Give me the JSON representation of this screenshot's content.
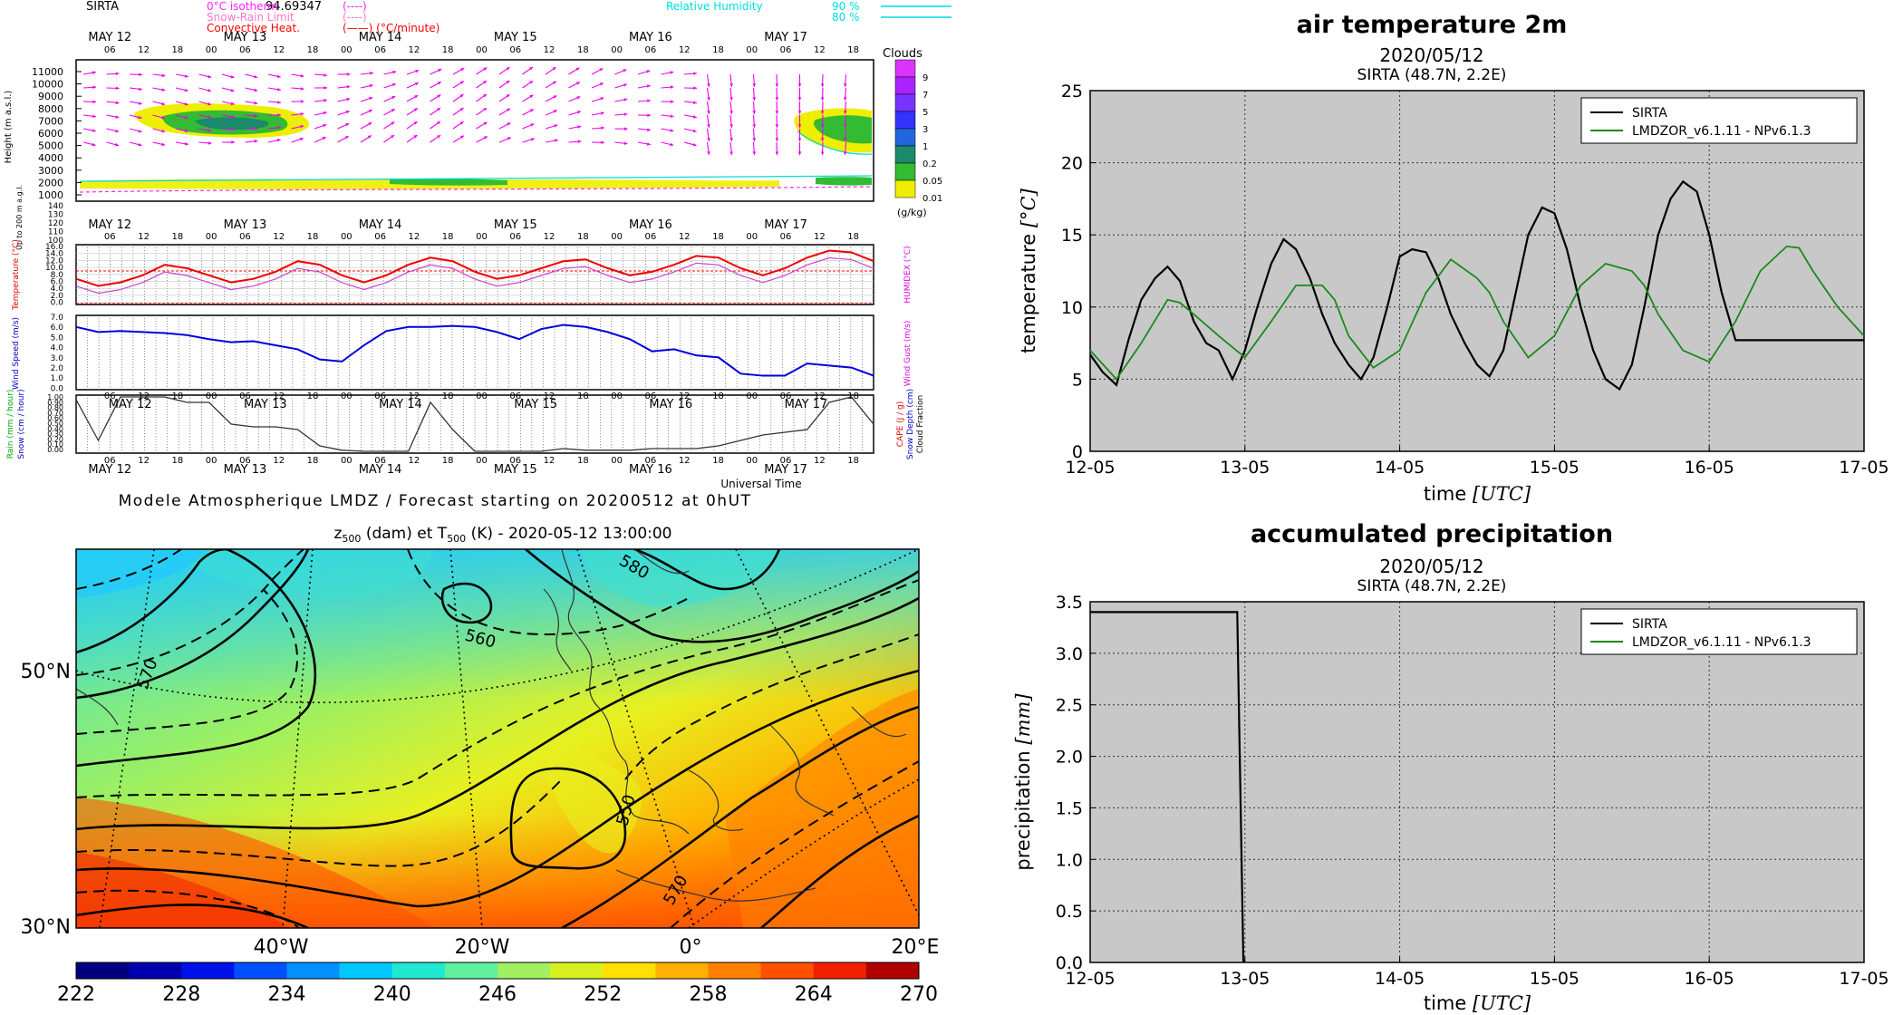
{
  "meteogram": {
    "station": "SIRTA",
    "station_value": "94.69347",
    "legend_left": [
      {
        "label": "0°C isotherm",
        "sample": "(----)",
        "color": "#ff22ff"
      },
      {
        "label": "Snow-Rain Limit",
        "sample": "(----)",
        "color": "#ff77cc"
      },
      {
        "label": "Convective Heat.",
        "sample": "(——) (°C/minute)",
        "color": "#ff0000"
      }
    ],
    "legend_right": [
      {
        "label": "Relative Humidity",
        "sample": "90 %",
        "color": "#00dddd"
      },
      {
        "label": "",
        "sample": "80 %",
        "color": "#00dddd"
      }
    ],
    "days": [
      "MAY 12",
      "MAY 13",
      "MAY 14",
      "MAY 15",
      "MAY 16",
      "MAY 17"
    ],
    "hours": [
      "06",
      "12",
      "18",
      "00"
    ],
    "height_label": "Height (m a.s.l.)",
    "height_ticks": [
      "11000",
      "10000",
      "9000",
      "8000",
      "7000",
      "6000",
      "5000",
      "4000",
      "3000",
      "2000",
      "1000"
    ],
    "low_label": "Up to 200 m a.g.l.",
    "low_ticks": [
      "140",
      "130",
      "120",
      "110",
      "100"
    ],
    "clouds_title": "Clouds",
    "clouds_unit": "(g/kg)",
    "cloud_levels": [
      "9",
      "7",
      "5",
      "3",
      "1",
      "0.2",
      "0.05",
      "0.01"
    ],
    "cloud_colors": [
      "#dd33ff",
      "#aa22ff",
      "#7733ff",
      "#3333ff",
      "#2266dd",
      "#1a8a6a",
      "#33bb33",
      "#eeee00"
    ],
    "temp_label": "Temperature (°C)",
    "temp_right_label": "HUMIDEX (°C)",
    "temp_ticks": [
      "16.0",
      "14.0",
      "12.0",
      "10.0",
      "8.0",
      "6.0",
      "4.0",
      "2.0",
      "0.0"
    ],
    "wind_label": "Wind Speed (m/s)",
    "wind_right_label": "Wind Gust (m/s)",
    "wind_ticks": [
      "7.0",
      "6.0",
      "5.0",
      "4.0",
      "3.0",
      "2.0",
      "1.0",
      "0.0"
    ],
    "precip_left_labels": [
      "Rain (mm / hour)",
      "Snow (cm / hour)"
    ],
    "precip_right_labels": [
      "CAPE (J / g)",
      "Snow Depth (cm)",
      "Cloud Fraction"
    ],
    "precip_ticks": [
      "1.00",
      "0.90",
      "0.80",
      "0.70",
      "0.60",
      "0.50",
      "0.40",
      "0.30",
      "0.20",
      "0.10",
      "0.00"
    ],
    "x_title": "Universal Time",
    "footer": "Modele Atmospherique LMDZ / Forecast starting on 20200512 at 0hUT"
  },
  "map": {
    "title_parts": {
      "z": "z",
      "sub500": "500",
      "dam": " (dam) et T",
      "sub500b": "500",
      "rest": " (K) - 2020-05-12 13:00:00"
    },
    "lat_labels": [
      "50°N",
      "30°N"
    ],
    "lon_labels": [
      "40°W",
      "20°W",
      "0°",
      "20°E"
    ],
    "contour_labels": [
      "560",
      "570",
      "550",
      "570",
      "580"
    ],
    "colorbar_ticks": [
      "222",
      "228",
      "234",
      "240",
      "246",
      "252",
      "258",
      "264",
      "270"
    ],
    "colorbar_colors": [
      "#00007f",
      "#0000b0",
      "#0010e8",
      "#0050ff",
      "#0090ff",
      "#00c8ff",
      "#20e8d0",
      "#60f0a0",
      "#a0f060",
      "#d8f020",
      "#ffe000",
      "#ffb000",
      "#ff8000",
      "#ff5000",
      "#f02000",
      "#b00000"
    ]
  },
  "chart_data": [
    {
      "type": "line",
      "title": "air temperature 2m",
      "subtitle1": "2020/05/12",
      "subtitle2": "SIRTA (48.7N, 2.2E)",
      "xlabel_pre": "time ",
      "xlabel_unit": "[UTC]",
      "ylabel_pre": "temperature ",
      "ylabel_unit": "[°C]",
      "x_ticks": [
        "12-05",
        "13-05",
        "14-05",
        "15-05",
        "16-05",
        "17-05"
      ],
      "y_ticks": [
        "0",
        "5",
        "10",
        "15",
        "20",
        "25"
      ],
      "xlim": [
        0,
        5
      ],
      "ylim": [
        0,
        25
      ],
      "grid": true,
      "legend_position": "top-right",
      "series": [
        {
          "name": "SIRTA",
          "color": "#000000",
          "x": [
            0,
            0.08,
            0.17,
            0.25,
            0.33,
            0.42,
            0.5,
            0.58,
            0.67,
            0.75,
            0.83,
            0.92,
            1.0,
            1.08,
            1.17,
            1.25,
            1.33,
            1.42,
            1.5,
            1.58,
            1.67,
            1.75,
            1.83,
            1.92,
            2.0,
            2.08,
            2.17,
            2.25,
            2.33,
            2.42,
            2.5,
            2.58,
            2.67,
            2.75,
            2.83,
            2.92,
            3.0,
            3.08,
            3.17,
            3.25,
            3.33,
            3.42,
            3.5,
            3.58,
            3.67,
            3.75,
            3.83,
            3.92,
            4.0,
            4.08,
            4.17,
            4.25,
            4.33,
            4.42,
            4.5,
            4.58,
            4.67,
            4.75,
            4.83,
            4.92,
            5.0
          ],
          "y": [
            6.7,
            5.5,
            4.6,
            7.8,
            10.5,
            12.0,
            12.8,
            11.8,
            9.0,
            7.5,
            7.0,
            5.0,
            7.0,
            10.0,
            13.0,
            14.7,
            14.0,
            12.0,
            9.5,
            7.5,
            6.0,
            5.0,
            6.5,
            10.0,
            13.5,
            14.0,
            13.8,
            12.0,
            9.5,
            7.5,
            6.0,
            5.2,
            7.0,
            11.0,
            15.0,
            16.9,
            16.5,
            14.0,
            10.0,
            7.0,
            5.0,
            4.3,
            6.0,
            10.0,
            15.0,
            17.5,
            18.7,
            18.0,
            15.0,
            11.0,
            7.7,
            7.7,
            7.7,
            7.7,
            7.7,
            7.7,
            7.7,
            7.7,
            7.7,
            7.7,
            7.7
          ]
        },
        {
          "name": "LMDZOR_v6.1.11 - NPv6.1.3",
          "color": "#1a8a1a",
          "x": [
            0,
            0.17,
            0.33,
            0.5,
            0.58,
            0.67,
            0.83,
            1.0,
            1.17,
            1.33,
            1.5,
            1.58,
            1.67,
            1.83,
            2.0,
            2.17,
            2.33,
            2.5,
            2.58,
            2.67,
            2.83,
            3.0,
            3.17,
            3.33,
            3.5,
            3.58,
            3.67,
            3.83,
            4.0,
            4.17,
            4.33,
            4.5,
            4.58,
            4.67,
            4.83,
            5.0
          ],
          "y": [
            7.0,
            5.0,
            7.5,
            10.5,
            10.3,
            9.5,
            8.0,
            6.5,
            9.0,
            11.5,
            11.5,
            10.5,
            8.0,
            5.8,
            7.0,
            11.0,
            13.3,
            12.0,
            11.0,
            9.0,
            6.5,
            8.0,
            11.5,
            13.0,
            12.5,
            11.5,
            9.5,
            7.0,
            6.2,
            9.0,
            12.5,
            14.2,
            14.1,
            12.5,
            10.0,
            8.0
          ]
        }
      ]
    },
    {
      "type": "line",
      "title": "accumulated precipitation",
      "subtitle1": "2020/05/12",
      "subtitle2": "SIRTA (48.7N, 2.2E)",
      "xlabel_pre": "time ",
      "xlabel_unit": "[UTC]",
      "ylabel_pre": "precipitation ",
      "ylabel_unit": "[mm]",
      "x_ticks": [
        "12-05",
        "13-05",
        "14-05",
        "15-05",
        "16-05",
        "17-05"
      ],
      "y_ticks": [
        "0.0",
        "0.5",
        "1.0",
        "1.5",
        "2.0",
        "2.5",
        "3.0",
        "3.5"
      ],
      "xlim": [
        0,
        5
      ],
      "ylim": [
        0,
        3.5
      ],
      "grid": true,
      "legend_position": "top-right",
      "series": [
        {
          "name": "SIRTA",
          "color": "#000000",
          "x": [
            0,
            0.95,
            0.99
          ],
          "y": [
            3.4,
            3.4,
            0.0
          ]
        },
        {
          "name": "LMDZOR_v6.1.11 - NPv6.1.3",
          "color": "#1a8a1a",
          "x": [],
          "y": []
        }
      ]
    }
  ]
}
